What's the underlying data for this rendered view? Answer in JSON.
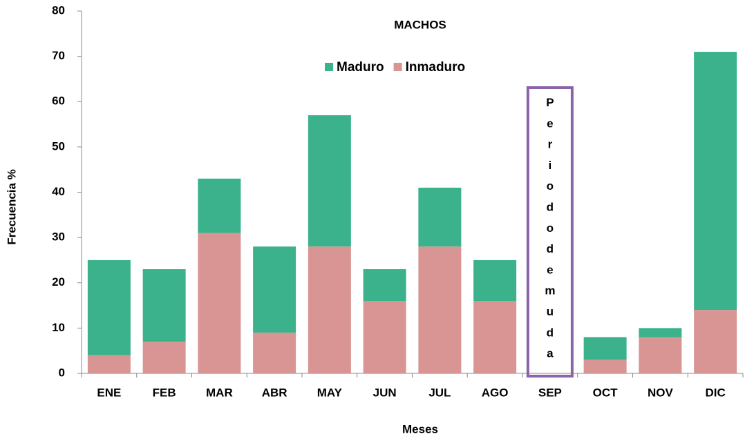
{
  "chart_data": {
    "type": "stacked_bar",
    "title": "MACHOS",
    "x_label": "Meses",
    "y_label": "Frecuencia %",
    "categories": [
      "ENE",
      "FEB",
      "MAR",
      "ABR",
      "MAY",
      "JUN",
      "JUL",
      "AGO",
      "SEP",
      "OCT",
      "NOV",
      "DIC"
    ],
    "series": [
      {
        "name": "Maduro",
        "color": "#3bb28c",
        "values": [
          21,
          16,
          12,
          19,
          29,
          7,
          13,
          9,
          null,
          5,
          2,
          57
        ]
      },
      {
        "name": "Inmaduro",
        "color": "#d99594",
        "values": [
          4,
          7,
          31,
          9,
          28,
          16,
          28,
          16,
          null,
          3,
          8,
          14
        ]
      }
    ],
    "ylim": [
      0,
      80
    ],
    "yticks": [
      0,
      10,
      20,
      30,
      40,
      50,
      60,
      70,
      80
    ],
    "legend": "top-center",
    "annotation": {
      "text": "Periododemuda",
      "category": "SEP",
      "color": "#8a63a8"
    }
  }
}
